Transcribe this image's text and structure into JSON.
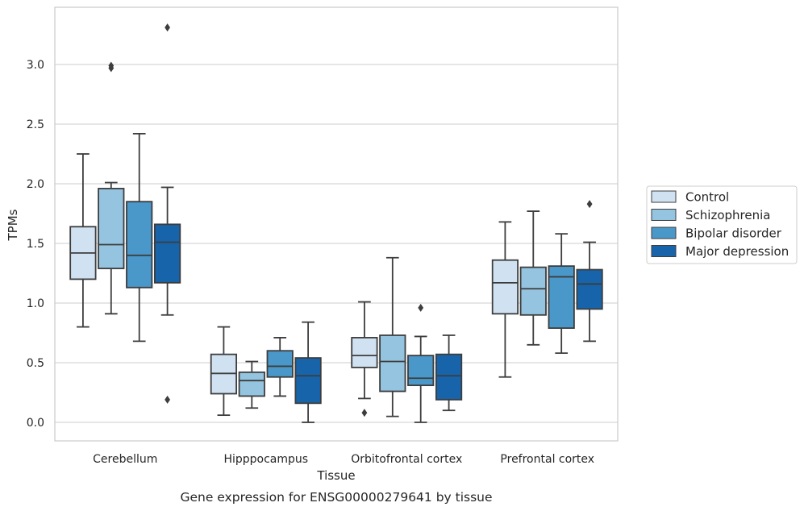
{
  "chart_data": {
    "type": "box",
    "xlabel": "Tissue",
    "ylabel": "TPMs",
    "caption": "Gene expression for ENSG00000279641 by tissue",
    "ylim": [
      -0.16,
      3.46
    ],
    "yticks": [
      "0.0",
      "0.5",
      "1.0",
      "1.5",
      "2.0",
      "2.5",
      "3.0"
    ],
    "grid": "horizontal",
    "legend_position": "right",
    "categories": [
      "Cerebellum",
      "Hipppocampus",
      "Orbitofrontal cortex",
      "Prefrontal cortex"
    ],
    "series": [
      {
        "name": "Control",
        "color": "#d0e1f2",
        "boxes": [
          {
            "whisker_low": 0.8,
            "q1": 1.2,
            "median": 1.42,
            "q3": 1.64,
            "whisker_high": 2.25,
            "outliers": []
          },
          {
            "whisker_low": 0.06,
            "q1": 0.24,
            "median": 0.41,
            "q3": 0.57,
            "whisker_high": 0.8,
            "outliers": []
          },
          {
            "whisker_low": 0.2,
            "q1": 0.46,
            "median": 0.56,
            "q3": 0.71,
            "whisker_high": 1.01,
            "outliers": [
              0.08
            ]
          },
          {
            "whisker_low": 0.38,
            "q1": 0.91,
            "median": 1.17,
            "q3": 1.36,
            "whisker_high": 1.68,
            "outliers": []
          }
        ]
      },
      {
        "name": "Schizophrenia",
        "color": "#94c4df",
        "boxes": [
          {
            "whisker_low": 0.91,
            "q1": 1.29,
            "median": 1.49,
            "q3": 1.96,
            "whisker_high": 2.01,
            "outliers": [
              2.97,
              2.99
            ]
          },
          {
            "whisker_low": 0.12,
            "q1": 0.22,
            "median": 0.35,
            "q3": 0.42,
            "whisker_high": 0.51,
            "outliers": []
          },
          {
            "whisker_low": 0.05,
            "q1": 0.26,
            "median": 0.51,
            "q3": 0.73,
            "whisker_high": 1.38,
            "outliers": []
          },
          {
            "whisker_low": 0.65,
            "q1": 0.9,
            "median": 1.12,
            "q3": 1.3,
            "whisker_high": 1.77,
            "outliers": []
          }
        ]
      },
      {
        "name": "Bipolar disorder",
        "color": "#4a98c9",
        "boxes": [
          {
            "whisker_low": 0.68,
            "q1": 1.13,
            "median": 1.4,
            "q3": 1.85,
            "whisker_high": 2.42,
            "outliers": []
          },
          {
            "whisker_low": 0.22,
            "q1": 0.38,
            "median": 0.47,
            "q3": 0.6,
            "whisker_high": 0.71,
            "outliers": []
          },
          {
            "whisker_low": 0.0,
            "q1": 0.31,
            "median": 0.37,
            "q3": 0.56,
            "whisker_high": 0.72,
            "outliers": [
              0.96
            ]
          },
          {
            "whisker_low": 0.58,
            "q1": 0.79,
            "median": 1.22,
            "q3": 1.31,
            "whisker_high": 1.58,
            "outliers": []
          }
        ]
      },
      {
        "name": "Major depression",
        "color": "#1764ab",
        "boxes": [
          {
            "whisker_low": 0.9,
            "q1": 1.17,
            "median": 1.51,
            "q3": 1.66,
            "whisker_high": 1.97,
            "outliers": [
              0.19,
              3.31
            ]
          },
          {
            "whisker_low": 0.0,
            "q1": 0.16,
            "median": 0.39,
            "q3": 0.54,
            "whisker_high": 0.84,
            "outliers": []
          },
          {
            "whisker_low": 0.1,
            "q1": 0.19,
            "median": 0.39,
            "q3": 0.57,
            "whisker_high": 0.73,
            "outliers": []
          },
          {
            "whisker_low": 0.68,
            "q1": 0.95,
            "median": 1.16,
            "q3": 1.28,
            "whisker_high": 1.51,
            "outliers": [
              1.83
            ]
          }
        ]
      }
    ]
  }
}
